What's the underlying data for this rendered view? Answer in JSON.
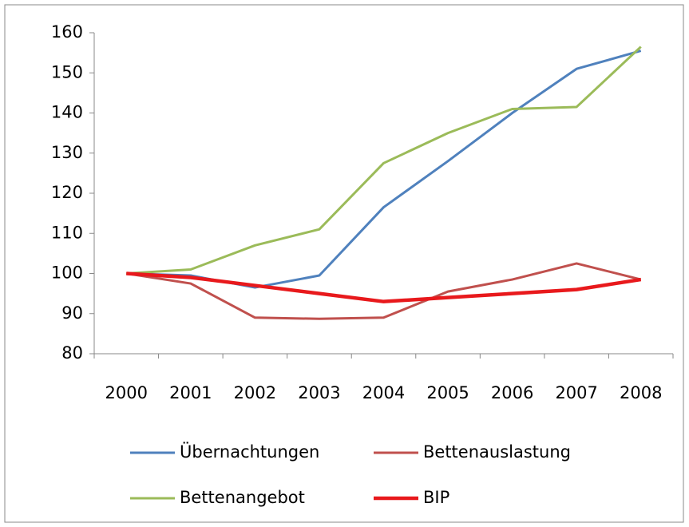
{
  "chart_data": {
    "type": "line",
    "categories": [
      "2000",
      "2001",
      "2002",
      "2003",
      "2004",
      "2005",
      "2006",
      "2007",
      "2008"
    ],
    "series": [
      {
        "name": "Übernachtungen",
        "color": "#4f81bd",
        "values": [
          100,
          99.5,
          96.5,
          99.5,
          116.5,
          128,
          140,
          151,
          155.5
        ]
      },
      {
        "name": "Bettenauslastung",
        "color": "#c0504d",
        "values": [
          100,
          97.5,
          89,
          88.7,
          89,
          95.5,
          98.5,
          102.5,
          98.5
        ]
      },
      {
        "name": "Bettenangebot",
        "color": "#9bbb59",
        "values": [
          100,
          101,
          107,
          111,
          127.5,
          135,
          141,
          141.5,
          156.5
        ]
      },
      {
        "name": "BIP",
        "color": "#e8191c",
        "values": [
          100,
          99,
          97,
          95,
          93,
          94,
          95,
          96,
          98.5
        ]
      }
    ],
    "ylim": [
      80,
      160
    ],
    "yticks": [
      80,
      90,
      100,
      110,
      120,
      130,
      140,
      150,
      160
    ],
    "grid": false
  }
}
